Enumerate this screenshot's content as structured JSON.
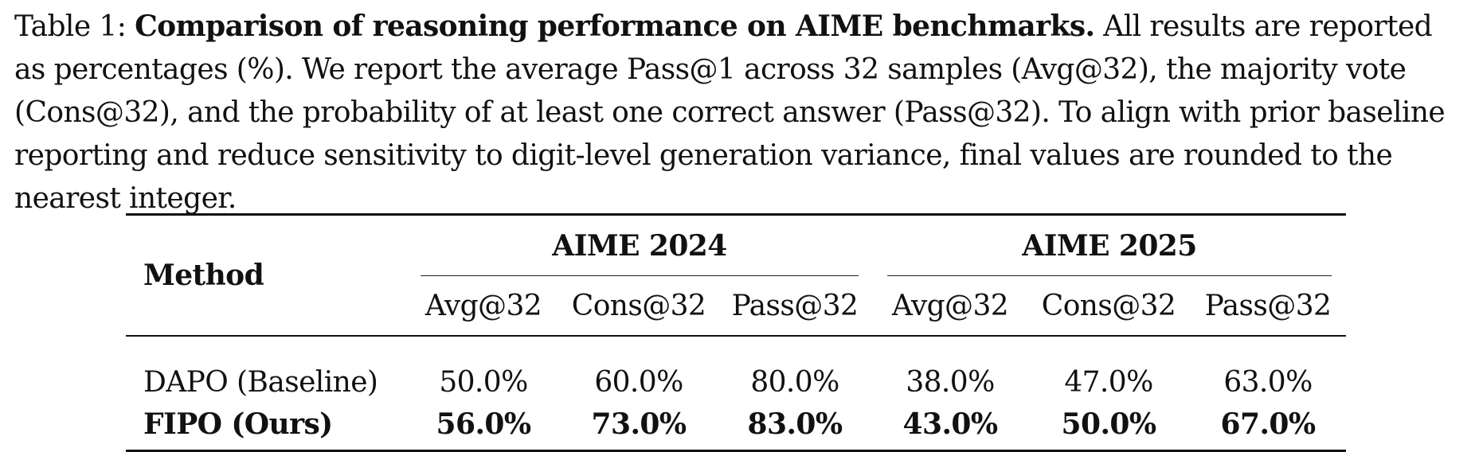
{
  "caption": {
    "label": "Table 1:",
    "title": "Comparison of reasoning performance on AIME benchmarks.",
    "text": "All results are reported as percentages (%). We report the average Pass@1 across 32 samples (Avg@32), the majority vote (Cons@32), and the probability of at least one correct answer (Pass@32). To align with prior baseline reporting and reduce sensitivity to digit-level generation variance, final values are rounded to the nearest integer."
  },
  "table": {
    "method_header": "Method",
    "groups": [
      "AIME 2024",
      "AIME 2025"
    ],
    "metrics": [
      "Avg@32",
      "Cons@32",
      "Pass@32",
      "Avg@32",
      "Cons@32",
      "Pass@32"
    ],
    "rows": [
      {
        "method": "DAPO (Baseline)",
        "values": [
          "50.0%",
          "60.0%",
          "80.0%",
          "38.0%",
          "47.0%",
          "63.0%"
        ],
        "bold": false
      },
      {
        "method": "FIPO (Ours)",
        "values": [
          "56.0%",
          "73.0%",
          "83.0%",
          "43.0%",
          "50.0%",
          "67.0%"
        ],
        "bold": true
      }
    ]
  }
}
